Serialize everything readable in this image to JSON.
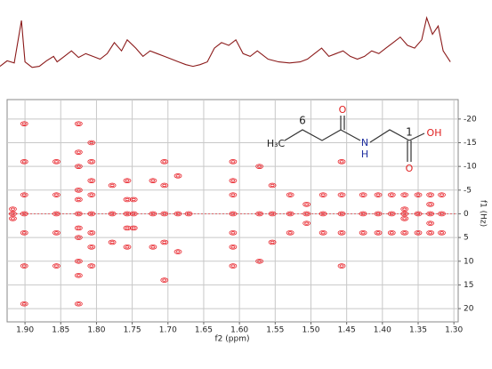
{
  "chart_data": {
    "type": "contour",
    "xlabel": "f2 (ppm)",
    "ylabel": "f1 (Hz)",
    "xlim": [
      1.925,
      1.294
    ],
    "ylim": [
      -24.1,
      22.8
    ],
    "xticks": [
      {
        "value": 1.9,
        "label": "1.90"
      },
      1.85,
      {
        "value": 1.8,
        "label": "1.80"
      },
      1.75,
      {
        "value": 1.7,
        "label": "1.70"
      },
      1.65,
      {
        "value": 1.6,
        "label": "1.60"
      },
      1.55,
      {
        "value": 1.5,
        "label": "1.50"
      },
      1.45,
      {
        "value": 1.4,
        "label": "1.40"
      },
      1.35,
      {
        "value": 1.3,
        "label": "1.30"
      }
    ],
    "yticks": [
      -20,
      -15,
      -10,
      -5,
      0,
      5,
      10,
      15,
      20
    ],
    "grid": true,
    "color": "#e8232a",
    "peaks": [
      {
        "x": 1.917,
        "y": [
          -1,
          0,
          1
        ]
      },
      {
        "x": 1.901,
        "y": [
          -19,
          -11,
          -4,
          0,
          4,
          11,
          19
        ]
      },
      {
        "x": 1.856,
        "y": [
          -11,
          -4,
          0,
          4,
          11
        ]
      },
      {
        "x": 1.825,
        "y": [
          -19,
          -13,
          -10,
          -5,
          -3,
          0,
          3,
          5,
          10,
          13,
          19
        ]
      },
      {
        "x": 1.807,
        "y": [
          -15,
          -11,
          -7,
          -4,
          0,
          4,
          7,
          11
        ]
      },
      {
        "x": 1.778,
        "y": [
          -6,
          0,
          6
        ]
      },
      {
        "x": 1.757,
        "y": [
          -7,
          -3,
          0,
          3,
          7
        ]
      },
      {
        "x": 1.748,
        "y": [
          -3,
          0,
          3
        ]
      },
      {
        "x": 1.721,
        "y": [
          -7,
          0,
          7
        ]
      },
      {
        "x": 1.705,
        "y": [
          -11,
          -6,
          0,
          6,
          14
        ]
      },
      {
        "x": 1.686,
        "y": [
          -8,
          0,
          8
        ]
      },
      {
        "x": 1.671,
        "y": [
          0
        ]
      },
      {
        "x": 1.609,
        "y": [
          -11,
          -7,
          -4,
          0,
          4,
          7,
          11
        ]
      },
      {
        "x": 1.572,
        "y": [
          -10,
          0,
          10
        ]
      },
      {
        "x": 1.554,
        "y": [
          -6,
          0,
          6
        ]
      },
      {
        "x": 1.529,
        "y": [
          -4,
          0,
          4
        ]
      },
      {
        "x": 1.506,
        "y": [
          -2,
          0,
          2
        ]
      },
      {
        "x": 1.483,
        "y": [
          -4,
          0,
          4
        ]
      },
      {
        "x": 1.457,
        "y": [
          -11,
          -4,
          0,
          4,
          11
        ]
      },
      {
        "x": 1.427,
        "y": [
          -4,
          0,
          4
        ]
      },
      {
        "x": 1.406,
        "y": [
          -4,
          0,
          4
        ]
      },
      {
        "x": 1.387,
        "y": [
          -4,
          0,
          4
        ]
      },
      {
        "x": 1.369,
        "y": [
          -4,
          -1,
          0,
          1,
          4
        ]
      },
      {
        "x": 1.35,
        "y": [
          -4,
          0,
          4
        ]
      },
      {
        "x": 1.333,
        "y": [
          -4,
          -2,
          0,
          2,
          4
        ]
      },
      {
        "x": 1.317,
        "y": [
          -4,
          0,
          4
        ]
      }
    ],
    "projection": {
      "color": "#8b1a1a",
      "x": [
        1.935,
        1.925,
        1.915,
        1.905,
        1.9,
        1.89,
        1.88,
        1.87,
        1.86,
        1.855,
        1.845,
        1.835,
        1.825,
        1.815,
        1.805,
        1.795,
        1.785,
        1.775,
        1.765,
        1.757,
        1.745,
        1.735,
        1.725,
        1.715,
        1.705,
        1.695,
        1.685,
        1.675,
        1.665,
        1.655,
        1.645,
        1.635,
        1.625,
        1.615,
        1.605,
        1.595,
        1.585,
        1.575,
        1.56,
        1.545,
        1.53,
        1.515,
        1.505,
        1.495,
        1.485,
        1.475,
        1.465,
        1.455,
        1.445,
        1.435,
        1.425,
        1.415,
        1.405,
        1.395,
        1.385,
        1.375,
        1.365,
        1.355,
        1.345,
        1.338,
        1.33,
        1.322,
        1.315,
        1.305
      ],
      "values": [
        12,
        22,
        18,
        95,
        20,
        10,
        12,
        22,
        30,
        20,
        30,
        40,
        28,
        35,
        30,
        25,
        35,
        55,
        40,
        60,
        45,
        30,
        40,
        35,
        30,
        25,
        20,
        15,
        12,
        15,
        20,
        45,
        55,
        50,
        60,
        35,
        30,
        40,
        25,
        20,
        18,
        20,
        25,
        35,
        45,
        30,
        35,
        40,
        30,
        25,
        30,
        40,
        35,
        45,
        55,
        65,
        50,
        45,
        60,
        100,
        70,
        85,
        40,
        20
      ]
    }
  },
  "structure": {
    "methyl": "H₃C",
    "c6": "6",
    "o_top": "O",
    "n": "N",
    "nh": "H",
    "c1": "1",
    "oh": "OH",
    "o_bottom": "O"
  }
}
